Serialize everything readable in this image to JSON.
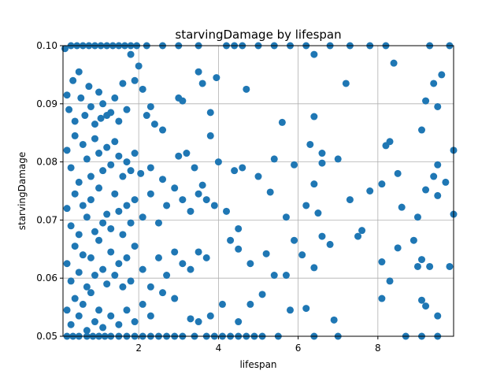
{
  "chart_data": {
    "type": "scatter",
    "title": "starvingDamage by lifespan",
    "xlabel": "lifespan",
    "ylabel": "starvingDamage",
    "xlim": [
      0.1,
      9.9
    ],
    "ylim": [
      0.05,
      0.1
    ],
    "xticks": [
      2,
      4,
      6,
      8
    ],
    "xtick_labels": [
      "2",
      "4",
      "6",
      "8"
    ],
    "yticks": [
      0.05,
      0.06,
      0.07,
      0.08,
      0.09,
      0.1
    ],
    "ytick_labels": [
      "0.05",
      "0.06",
      "0.07",
      "0.08",
      "0.09",
      "0.10"
    ],
    "grid": true,
    "marker_color": "#1f77b4",
    "points": [
      [
        0.15,
        0.0995
      ],
      [
        0.3,
        0.1
      ],
      [
        0.45,
        0.1
      ],
      [
        0.6,
        0.1
      ],
      [
        0.75,
        0.1
      ],
      [
        0.9,
        0.1
      ],
      [
        1.05,
        0.1
      ],
      [
        1.2,
        0.1
      ],
      [
        1.35,
        0.1
      ],
      [
        1.5,
        0.1
      ],
      [
        1.65,
        0.1
      ],
      [
        1.8,
        0.1
      ],
      [
        1.95,
        0.1
      ],
      [
        2.2,
        0.1
      ],
      [
        2.6,
        0.1
      ],
      [
        3.0,
        0.1
      ],
      [
        3.5,
        0.1
      ],
      [
        4.2,
        0.1
      ],
      [
        4.4,
        0.1
      ],
      [
        4.6,
        0.1
      ],
      [
        5.0,
        0.1
      ],
      [
        5.4,
        0.1
      ],
      [
        5.8,
        0.1
      ],
      [
        6.2,
        0.1
      ],
      [
        6.8,
        0.1
      ],
      [
        7.3,
        0.1
      ],
      [
        7.8,
        0.1
      ],
      [
        8.2,
        0.1
      ],
      [
        9.3,
        0.1
      ],
      [
        9.8,
        0.1
      ],
      [
        0.2,
        0.05
      ],
      [
        0.35,
        0.05
      ],
      [
        0.5,
        0.05
      ],
      [
        0.7,
        0.05
      ],
      [
        0.85,
        0.05
      ],
      [
        1.0,
        0.05
      ],
      [
        1.15,
        0.05
      ],
      [
        1.3,
        0.05
      ],
      [
        1.5,
        0.05
      ],
      [
        1.7,
        0.05
      ],
      [
        1.9,
        0.05
      ],
      [
        2.1,
        0.05
      ],
      [
        2.3,
        0.05
      ],
      [
        2.5,
        0.05
      ],
      [
        2.7,
        0.05
      ],
      [
        2.9,
        0.05
      ],
      [
        3.1,
        0.05
      ],
      [
        3.4,
        0.05
      ],
      [
        3.7,
        0.05
      ],
      [
        3.9,
        0.05
      ],
      [
        4.1,
        0.05
      ],
      [
        4.3,
        0.05
      ],
      [
        4.5,
        0.05
      ],
      [
        4.7,
        0.05
      ],
      [
        4.9,
        0.05
      ],
      [
        5.1,
        0.05
      ],
      [
        5.5,
        0.05
      ],
      [
        6.4,
        0.05
      ],
      [
        7.0,
        0.05
      ],
      [
        8.7,
        0.05
      ],
      [
        9.1,
        0.05
      ],
      [
        9.5,
        0.05
      ],
      [
        0.2,
        0.0915
      ],
      [
        0.25,
        0.089
      ],
      [
        0.35,
        0.094
      ],
      [
        0.4,
        0.087
      ],
      [
        0.5,
        0.0955
      ],
      [
        0.55,
        0.091
      ],
      [
        0.65,
        0.088
      ],
      [
        0.75,
        0.093
      ],
      [
        0.8,
        0.0895
      ],
      [
        0.9,
        0.0865
      ],
      [
        1.0,
        0.092
      ],
      [
        1.05,
        0.0875
      ],
      [
        1.1,
        0.09
      ],
      [
        1.2,
        0.088
      ],
      [
        1.3,
        0.0885
      ],
      [
        1.4,
        0.091
      ],
      [
        1.5,
        0.087
      ],
      [
        1.6,
        0.0935
      ],
      [
        1.7,
        0.089
      ],
      [
        1.8,
        0.0985
      ],
      [
        1.9,
        0.094
      ],
      [
        2.0,
        0.0965
      ],
      [
        2.1,
        0.0925
      ],
      [
        2.2,
        0.088
      ],
      [
        2.3,
        0.0895
      ],
      [
        2.4,
        0.0865
      ],
      [
        2.6,
        0.0855
      ],
      [
        3.0,
        0.091
      ],
      [
        3.1,
        0.0905
      ],
      [
        3.5,
        0.0955
      ],
      [
        3.6,
        0.0935
      ],
      [
        3.8,
        0.0885
      ],
      [
        3.95,
        0.0945
      ],
      [
        4.7,
        0.0925
      ],
      [
        5.6,
        0.0868
      ],
      [
        6.4,
        0.0985
      ],
      [
        6.4,
        0.0878
      ],
      [
        7.2,
        0.0935
      ],
      [
        8.2,
        0.0828
      ],
      [
        8.4,
        0.097
      ],
      [
        9.1,
        0.0855
      ],
      [
        9.2,
        0.0905
      ],
      [
        9.4,
        0.0935
      ],
      [
        9.5,
        0.0895
      ],
      [
        9.6,
        0.095
      ],
      [
        0.2,
        0.082
      ],
      [
        0.3,
        0.079
      ],
      [
        0.4,
        0.0845
      ],
      [
        0.5,
        0.0765
      ],
      [
        0.6,
        0.083
      ],
      [
        0.7,
        0.0805
      ],
      [
        0.8,
        0.0775
      ],
      [
        0.9,
        0.084
      ],
      [
        1.0,
        0.0815
      ],
      [
        1.1,
        0.0785
      ],
      [
        1.2,
        0.0825
      ],
      [
        1.3,
        0.0795
      ],
      [
        1.4,
        0.0835
      ],
      [
        1.5,
        0.081
      ],
      [
        1.6,
        0.0775
      ],
      [
        1.7,
        0.08
      ],
      [
        1.8,
        0.0785
      ],
      [
        1.9,
        0.0815
      ],
      [
        2.05,
        0.078
      ],
      [
        2.3,
        0.079
      ],
      [
        2.6,
        0.077
      ],
      [
        3.0,
        0.081
      ],
      [
        3.2,
        0.0815
      ],
      [
        3.4,
        0.079
      ],
      [
        3.6,
        0.076
      ],
      [
        3.8,
        0.0845
      ],
      [
        4.0,
        0.08
      ],
      [
        4.4,
        0.0785
      ],
      [
        4.6,
        0.079
      ],
      [
        5.0,
        0.0775
      ],
      [
        5.4,
        0.0805
      ],
      [
        5.9,
        0.0795
      ],
      [
        6.3,
        0.083
      ],
      [
        6.6,
        0.0815
      ],
      [
        6.6,
        0.0798
      ],
      [
        7.0,
        0.0805
      ],
      [
        8.3,
        0.0835
      ],
      [
        8.5,
        0.078
      ],
      [
        9.4,
        0.0775
      ],
      [
        9.5,
        0.0795
      ],
      [
        9.9,
        0.082
      ],
      [
        0.2,
        0.072
      ],
      [
        0.3,
        0.069
      ],
      [
        0.4,
        0.0745
      ],
      [
        0.5,
        0.0675
      ],
      [
        0.6,
        0.0725
      ],
      [
        0.7,
        0.0705
      ],
      [
        0.8,
        0.0735
      ],
      [
        0.9,
        0.068
      ],
      [
        1.0,
        0.0755
      ],
      [
        1.1,
        0.0695
      ],
      [
        1.2,
        0.071
      ],
      [
        1.3,
        0.0685
      ],
      [
        1.4,
        0.0745
      ],
      [
        1.5,
        0.0715
      ],
      [
        1.6,
        0.0675
      ],
      [
        1.7,
        0.0725
      ],
      [
        1.8,
        0.0695
      ],
      [
        1.9,
        0.0735
      ],
      [
        2.1,
        0.0705
      ],
      [
        2.3,
        0.0745
      ],
      [
        2.5,
        0.0695
      ],
      [
        2.7,
        0.0725
      ],
      [
        2.9,
        0.0755
      ],
      [
        3.1,
        0.0735
      ],
      [
        3.3,
        0.0715
      ],
      [
        3.5,
        0.0745
      ],
      [
        3.7,
        0.0735
      ],
      [
        3.9,
        0.0725
      ],
      [
        4.2,
        0.0715
      ],
      [
        4.5,
        0.0685
      ],
      [
        5.3,
        0.0748
      ],
      [
        5.7,
        0.0705
      ],
      [
        6.2,
        0.0725
      ],
      [
        6.5,
        0.0712
      ],
      [
        6.4,
        0.0762
      ],
      [
        7.3,
        0.0735
      ],
      [
        7.8,
        0.075
      ],
      [
        8.1,
        0.0762
      ],
      [
        8.6,
        0.0722
      ],
      [
        9.0,
        0.0705
      ],
      [
        9.2,
        0.0752
      ],
      [
        9.5,
        0.0742
      ],
      [
        9.7,
        0.0765
      ],
      [
        9.9,
        0.071
      ],
      [
        0.2,
        0.0625
      ],
      [
        0.3,
        0.0595
      ],
      [
        0.4,
        0.0655
      ],
      [
        0.5,
        0.061
      ],
      [
        0.6,
        0.064
      ],
      [
        0.7,
        0.0585
      ],
      [
        0.8,
        0.0635
      ],
      [
        0.9,
        0.0605
      ],
      [
        1.0,
        0.0665
      ],
      [
        1.1,
        0.0615
      ],
      [
        1.2,
        0.059
      ],
      [
        1.3,
        0.0645
      ],
      [
        1.4,
        0.0605
      ],
      [
        1.5,
        0.0625
      ],
      [
        1.6,
        0.0585
      ],
      [
        1.7,
        0.0635
      ],
      [
        1.8,
        0.0595
      ],
      [
        1.9,
        0.0655
      ],
      [
        2.1,
        0.0615
      ],
      [
        2.3,
        0.0585
      ],
      [
        2.5,
        0.0635
      ],
      [
        2.7,
        0.0605
      ],
      [
        2.9,
        0.0645
      ],
      [
        3.1,
        0.0625
      ],
      [
        3.3,
        0.0615
      ],
      [
        3.5,
        0.0645
      ],
      [
        3.7,
        0.0635
      ],
      [
        4.3,
        0.0665
      ],
      [
        4.5,
        0.065
      ],
      [
        4.8,
        0.0625
      ],
      [
        5.2,
        0.0642
      ],
      [
        5.4,
        0.0605
      ],
      [
        5.7,
        0.0605
      ],
      [
        5.9,
        0.0665
      ],
      [
        6.1,
        0.064
      ],
      [
        6.4,
        0.0618
      ],
      [
        6.6,
        0.0672
      ],
      [
        6.8,
        0.0658
      ],
      [
        7.5,
        0.0672
      ],
      [
        7.6,
        0.0682
      ],
      [
        8.1,
        0.0628
      ],
      [
        8.3,
        0.0595
      ],
      [
        8.5,
        0.0652
      ],
      [
        8.9,
        0.0665
      ],
      [
        9.0,
        0.062
      ],
      [
        9.1,
        0.0632
      ],
      [
        9.3,
        0.062
      ],
      [
        9.8,
        0.062
      ],
      [
        0.2,
        0.0545
      ],
      [
        0.3,
        0.052
      ],
      [
        0.4,
        0.0565
      ],
      [
        0.5,
        0.0535
      ],
      [
        0.6,
        0.0555
      ],
      [
        0.7,
        0.051
      ],
      [
        0.8,
        0.0575
      ],
      [
        0.9,
        0.0525
      ],
      [
        1.0,
        0.0545
      ],
      [
        1.1,
        0.0515
      ],
      [
        1.3,
        0.0535
      ],
      [
        1.5,
        0.052
      ],
      [
        1.7,
        0.0545
      ],
      [
        1.9,
        0.0525
      ],
      [
        2.1,
        0.0555
      ],
      [
        2.3,
        0.0535
      ],
      [
        2.6,
        0.0575
      ],
      [
        2.9,
        0.0565
      ],
      [
        3.3,
        0.053
      ],
      [
        3.5,
        0.0525
      ],
      [
        3.8,
        0.0535
      ],
      [
        4.1,
        0.0555
      ],
      [
        4.5,
        0.0525
      ],
      [
        4.8,
        0.0555
      ],
      [
        5.1,
        0.0572
      ],
      [
        5.8,
        0.0545
      ],
      [
        6.2,
        0.0548
      ],
      [
        6.9,
        0.0528
      ],
      [
        8.1,
        0.0565
      ],
      [
        9.1,
        0.0562
      ],
      [
        9.2,
        0.0552
      ],
      [
        9.5,
        0.0535
      ]
    ]
  }
}
